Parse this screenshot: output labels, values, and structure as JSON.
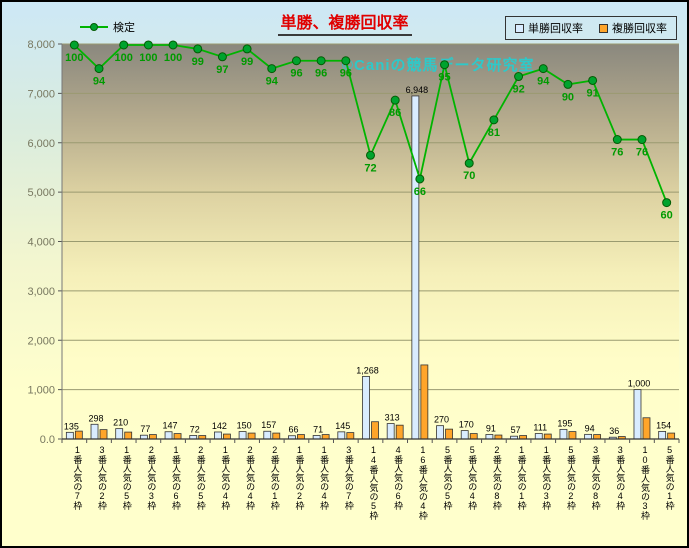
{
  "chart": {
    "title": "単勝、複勝回収率",
    "watermark": "©Caniの競馬データ研究室",
    "legend_line_label": "検定",
    "legend_items": [
      {
        "label": "単勝回収率",
        "color": "#d9ecff"
      },
      {
        "label": "複勝回収率",
        "color": "#ffa52a"
      }
    ]
  },
  "chart_data": {
    "type": "bar",
    "title": "単勝、複勝回収率",
    "categories": [
      "1番人気の7枠",
      "3番人気の2枠",
      "1番人気の5枠",
      "2番人気の3枠",
      "1番人気の6枠",
      "2番人気の5枠",
      "1番人気の4枠",
      "2番人気の4枠",
      "2番人気の1枠",
      "1番人気の2枠",
      "1番人気の4枠",
      "3番人気の7枠",
      "14番人気の5枠",
      "4番人気の6枠",
      "16番人気の4枠",
      "5番人気の5枠",
      "5番人気の4枠",
      "2番人気の8枠",
      "1番人気の1枠",
      "1番人気の3枠",
      "5番人気の2枠",
      "3番人気の8枠",
      "3番人気の4枠",
      "10番人気の3枠",
      "5番人気の1枠"
    ],
    "series": [
      {
        "name": "単勝回収率",
        "type": "bar",
        "color": "#d9ecff",
        "values": [
          135,
          298,
          210,
          77,
          147,
          72,
          142,
          150,
          157,
          66,
          71,
          145,
          1268,
          313,
          6948,
          270,
          170,
          91,
          57,
          111,
          195,
          94,
          36,
          1000,
          154
        ]
      },
      {
        "name": "複勝回収率",
        "type": "bar",
        "color": "#ffa52a",
        "values": [
          160,
          190,
          140,
          90,
          110,
          70,
          100,
          120,
          120,
          90,
          90,
          130,
          350,
          280,
          1500,
          200,
          110,
          80,
          70,
          100,
          150,
          90,
          50,
          430,
          120
        ]
      },
      {
        "name": "検定",
        "type": "line",
        "color": "#00b400",
        "axis": "secondary-percent",
        "values": [
          100,
          94,
          100,
          100,
          100,
          99,
          97,
          99,
          94,
          96,
          96,
          96,
          72,
          86,
          66,
          95,
          70,
          81,
          92,
          94,
          90,
          91,
          76,
          76,
          60
        ]
      }
    ],
    "ylim": [
      0,
      8000
    ],
    "yticks": [
      "0.0",
      "1,000",
      "2,000",
      "3,000",
      "4,000",
      "5,000",
      "6,000",
      "7,000",
      "8,000"
    ],
    "grid": true,
    "legend_position": "top",
    "line_scale_factor": 79.8
  }
}
